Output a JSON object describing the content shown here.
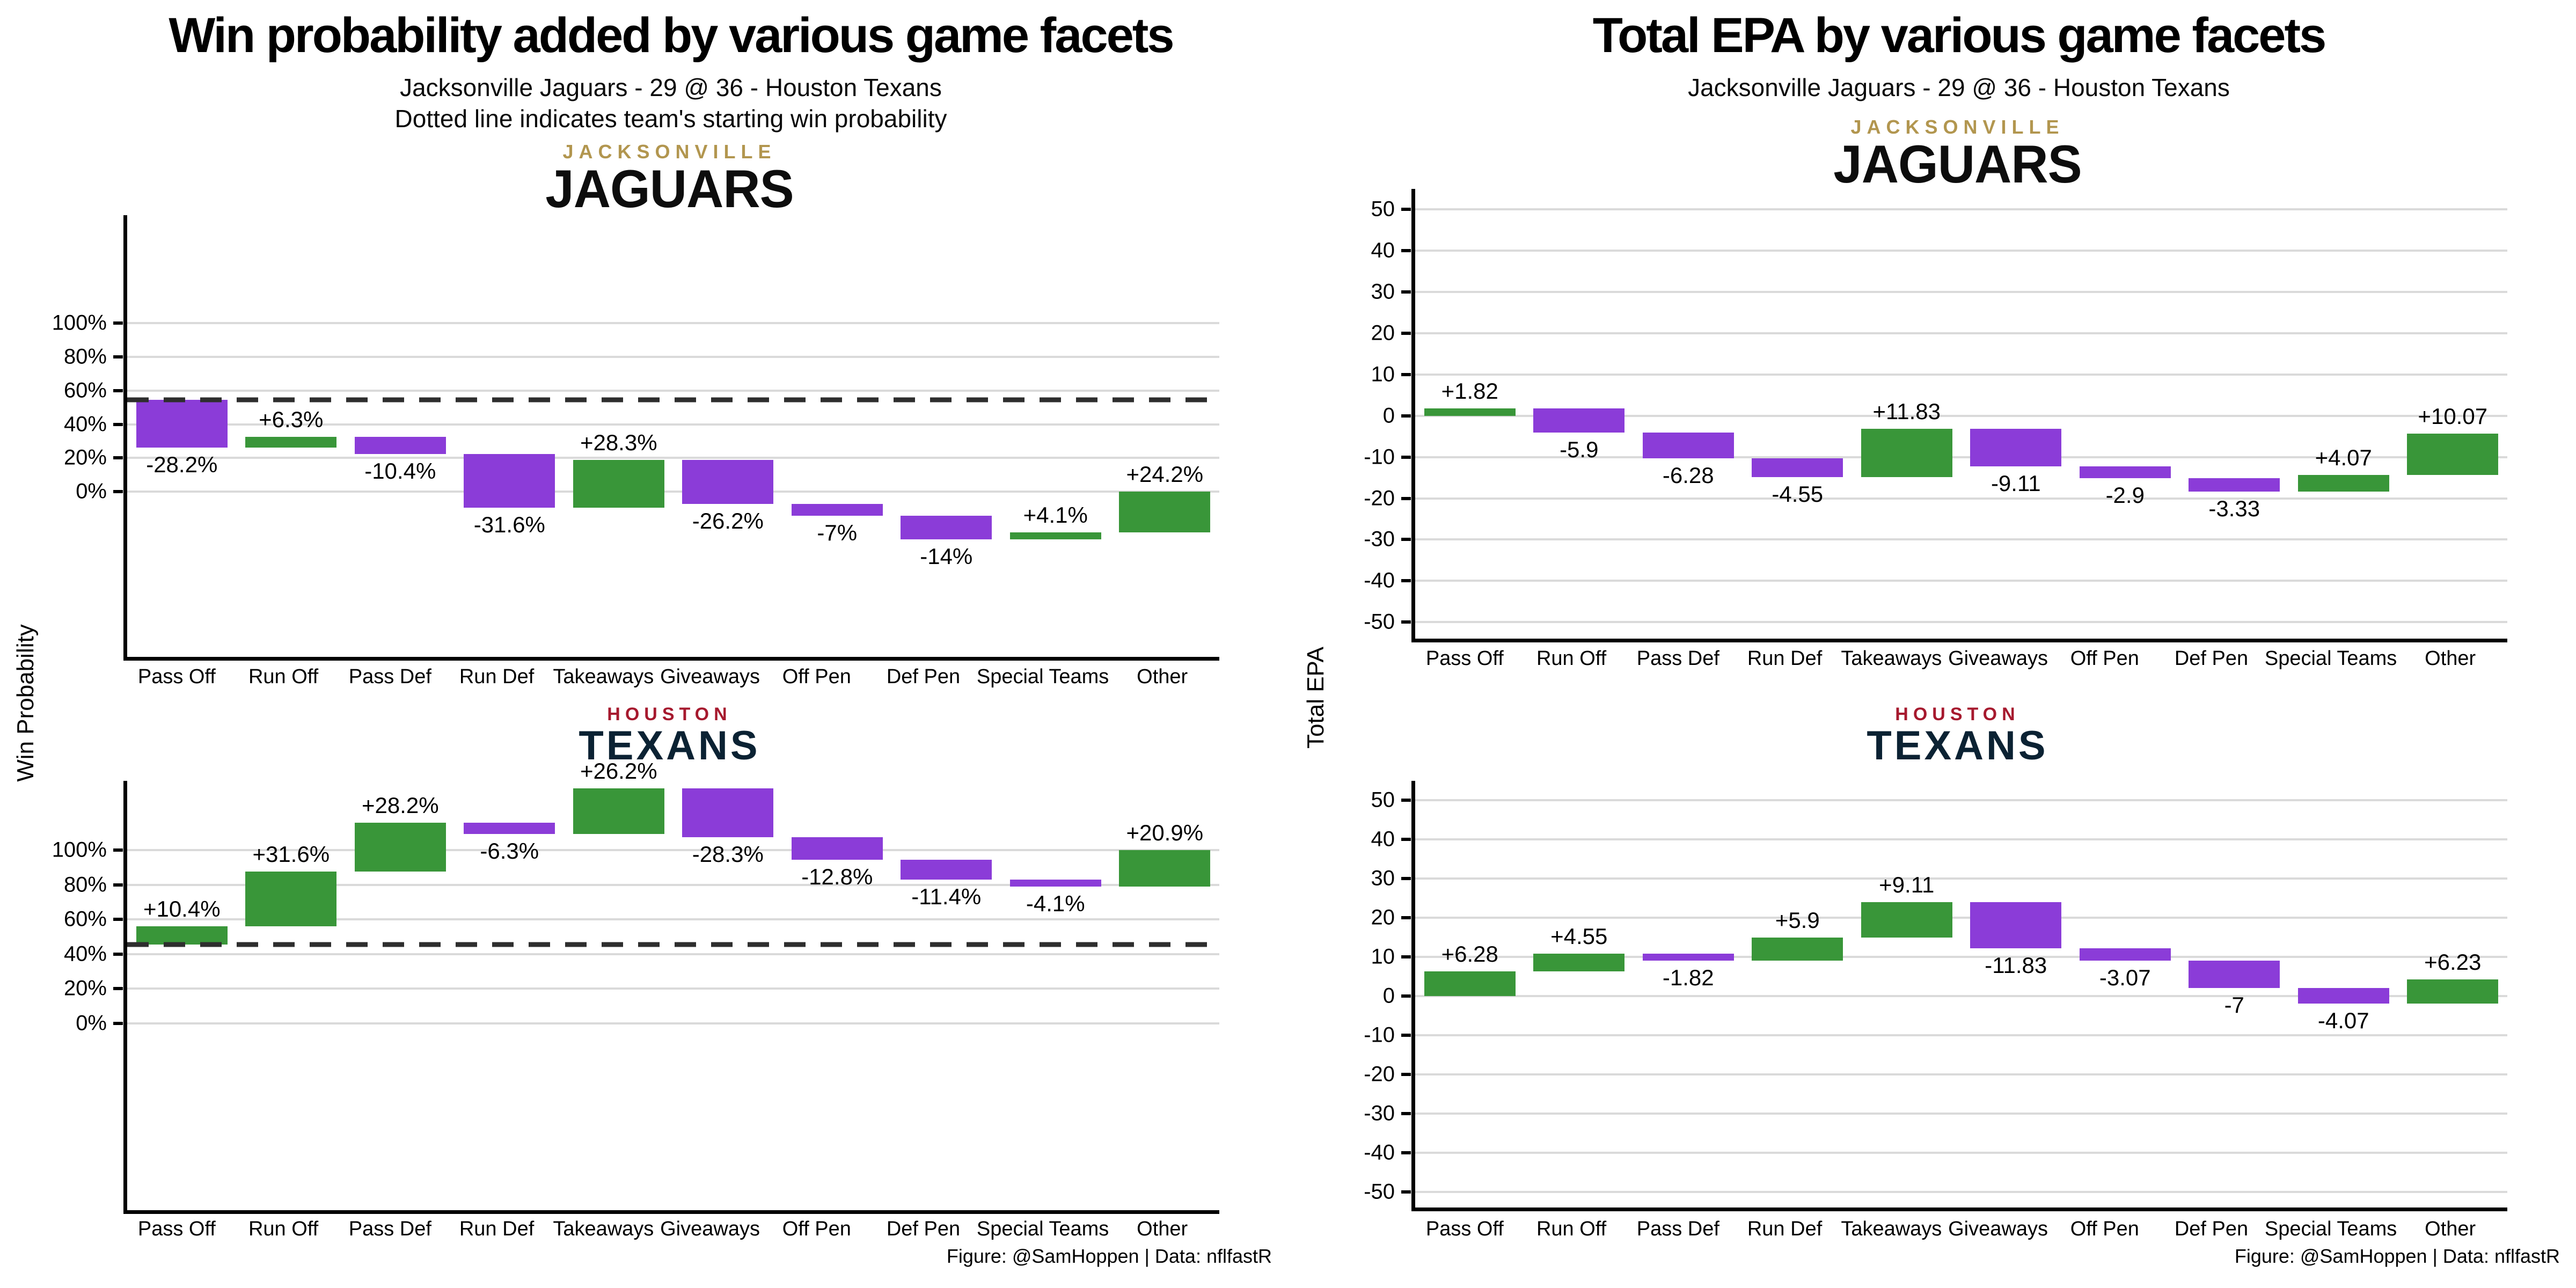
{
  "colors": {
    "positive_bar": "#399639",
    "negative_bar": "#8b3cd8",
    "gridline": "#dadada",
    "dashed_line": "#2e2e2e",
    "axis": "#000000",
    "jaguars_gold": "#b2964f",
    "jaguars_black": "#0d0d0d",
    "texans_red": "#a6192e",
    "texans_navy": "#0b2233",
    "background": "#ffffff"
  },
  "chart_data": [
    {
      "type": "bar",
      "subtype": "waterfall",
      "title": "Win probability added by various game facets",
      "subtitle": "Jacksonville Jaguars - 29 @ 36 - Houston Texans",
      "subtitle2": "Dotted line indicates team's starting win probability",
      "ylabel": "Win Probability",
      "credit": "Figure: @SamHoppen | Data: nflfastR",
      "categories": [
        "Pass Off",
        "Run Off",
        "Pass Def",
        "Run Def",
        "Takeaways",
        "Giveaways",
        "Off Pen",
        "Def Pen",
        "Special Teams",
        "Other"
      ],
      "grid": "horizontal-only",
      "legend": "none",
      "panels": [
        {
          "team_city": "JACKSONVILLE",
          "team_name": "JAGUARS",
          "start": 54.5,
          "values": [
            -28.2,
            6.3,
            -10.4,
            -31.6,
            28.3,
            -26.2,
            -7,
            -14,
            4.1,
            24.2
          ],
          "bar_labels": [
            "-28.2%",
            "+6.3%",
            "-10.4%",
            "-31.6%",
            "+28.3%",
            "-26.2%",
            "-7%",
            "-14%",
            "+4.1%",
            "+24.2%"
          ],
          "dashed_at": 54.5,
          "ylim": [
            -98,
            164
          ],
          "yticks": [
            100,
            80,
            60,
            40,
            20,
            0
          ],
          "ytick_labels": [
            "100%",
            "80%",
            "60%",
            "40%",
            "20%",
            "0%"
          ]
        },
        {
          "team_city": "HOUSTON",
          "team_name": "TEXANS",
          "start": 45.5,
          "values": [
            10.4,
            31.6,
            28.2,
            -6.3,
            26.2,
            -28.3,
            -12.8,
            -11.4,
            -4.1,
            20.9
          ],
          "bar_labels": [
            "+10.4%",
            "+31.6%",
            "+28.2%",
            "-6.3%",
            "+26.2%",
            "-28.3%",
            "-12.8%",
            "-11.4%",
            "-4.1%",
            "+20.9%"
          ],
          "dashed_at": 45.5,
          "ylim": [
            -108,
            140
          ],
          "yticks": [
            100,
            80,
            60,
            40,
            20,
            0
          ],
          "ytick_labels": [
            "100%",
            "80%",
            "60%",
            "40%",
            "20%",
            "0%"
          ]
        }
      ]
    },
    {
      "type": "bar",
      "subtype": "waterfall",
      "title": "Total EPA by various game facets",
      "subtitle": "Jacksonville Jaguars - 29 @ 36 - Houston Texans",
      "ylabel": "Total EPA",
      "credit": "Figure: @SamHoppen | Data: nflfastR",
      "categories": [
        "Pass Off",
        "Run Off",
        "Pass Def",
        "Run Def",
        "Takeaways",
        "Giveaways",
        "Off Pen",
        "Def Pen",
        "Special Teams",
        "Other"
      ],
      "grid": "horizontal-only",
      "legend": "none",
      "panels": [
        {
          "team_city": "JACKSONVILLE",
          "team_name": "JAGUARS",
          "start": 0,
          "values": [
            1.82,
            -5.9,
            -6.28,
            -4.55,
            11.83,
            -9.11,
            -2.9,
            -3.33,
            4.07,
            10.07
          ],
          "bar_labels": [
            "+1.82",
            "-5.9",
            "-6.28",
            "-4.55",
            "+11.83",
            "-9.11",
            "-2.9",
            "-3.33",
            "+4.07",
            "+10.07"
          ],
          "dashed_at": null,
          "ylim": [
            -54,
            55
          ],
          "yticks": [
            50,
            40,
            30,
            20,
            10,
            0,
            -10,
            -20,
            -30,
            -40,
            -50
          ],
          "ytick_labels": [
            "50",
            "40",
            "30",
            "20",
            "10",
            "0",
            "-10",
            "-20",
            "-30",
            "-40",
            "-50"
          ]
        },
        {
          "team_city": "HOUSTON",
          "team_name": "TEXANS",
          "start": 0,
          "values": [
            6.28,
            4.55,
            -1.82,
            5.9,
            9.11,
            -11.83,
            -3.07,
            -7,
            -4.07,
            6.23
          ],
          "bar_labels": [
            "+6.28",
            "+4.55",
            "-1.82",
            "+5.9",
            "+9.11",
            "-11.83",
            "-3.07",
            "-7",
            "-4.07",
            "+6.23"
          ],
          "dashed_at": null,
          "ylim": [
            -54,
            55
          ],
          "yticks": [
            50,
            40,
            30,
            20,
            10,
            0,
            -10,
            -20,
            -30,
            -40,
            -50
          ],
          "ytick_labels": [
            "50",
            "40",
            "30",
            "20",
            "10",
            "0",
            "-10",
            "-20",
            "-30",
            "-40",
            "-50"
          ]
        }
      ]
    }
  ]
}
